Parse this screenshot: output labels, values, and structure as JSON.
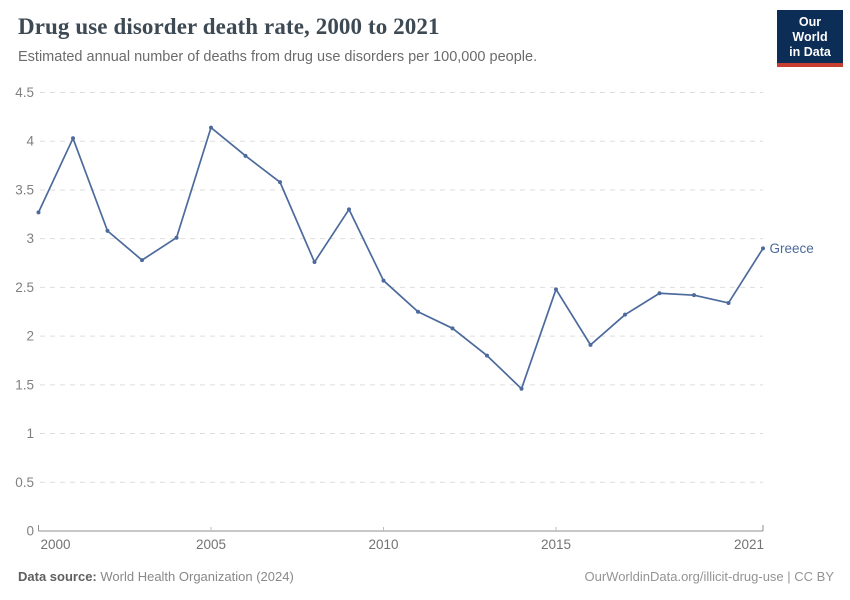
{
  "header": {
    "title": "Drug use disorder death rate, 2000 to 2021",
    "subtitle": "Estimated annual number of deaths from drug use disorders per 100,000 people.",
    "logo_line1": "Our World",
    "logo_line2": "in Data"
  },
  "chart_data": {
    "type": "line",
    "title": "Drug use disorder death rate, 2000 to 2021",
    "x": [
      2000,
      2001,
      2002,
      2003,
      2004,
      2005,
      2006,
      2007,
      2008,
      2009,
      2010,
      2011,
      2012,
      2013,
      2014,
      2015,
      2016,
      2017,
      2018,
      2019,
      2020,
      2021
    ],
    "series": [
      {
        "name": "Greece",
        "color": "#4c6a9c",
        "values": [
          3.27,
          4.03,
          3.08,
          2.78,
          3.01,
          4.14,
          3.85,
          3.58,
          2.76,
          3.3,
          2.57,
          2.25,
          2.08,
          1.8,
          1.46,
          2.48,
          1.91,
          2.22,
          2.44,
          2.42,
          2.34,
          2.9
        ]
      }
    ],
    "xlim": [
      2000,
      2021
    ],
    "ylim": [
      0,
      4.5
    ],
    "x_ticks": [
      2000,
      2005,
      2010,
      2015,
      2021
    ],
    "y_ticks": [
      0,
      0.5,
      1,
      1.5,
      2,
      2.5,
      3,
      3.5,
      4,
      4.5
    ],
    "grid": "horizontal-dashed",
    "legend_position": "end-of-line-label",
    "xlabel": "",
    "ylabel": ""
  },
  "footer": {
    "datasource_label": "Data source:",
    "datasource_value": "World Health Organization (2024)",
    "attribution": "OurWorldinData.org/illicit-drug-use | CC BY"
  },
  "colors": {
    "series_line": "#4c6a9c",
    "gridline": "#dddddd",
    "axis_line": "#8f8f8f",
    "tick_label": "#808080",
    "logo_bg": "#0c2d55",
    "logo_red": "#c63f31",
    "title_text": "#3d4a54"
  }
}
